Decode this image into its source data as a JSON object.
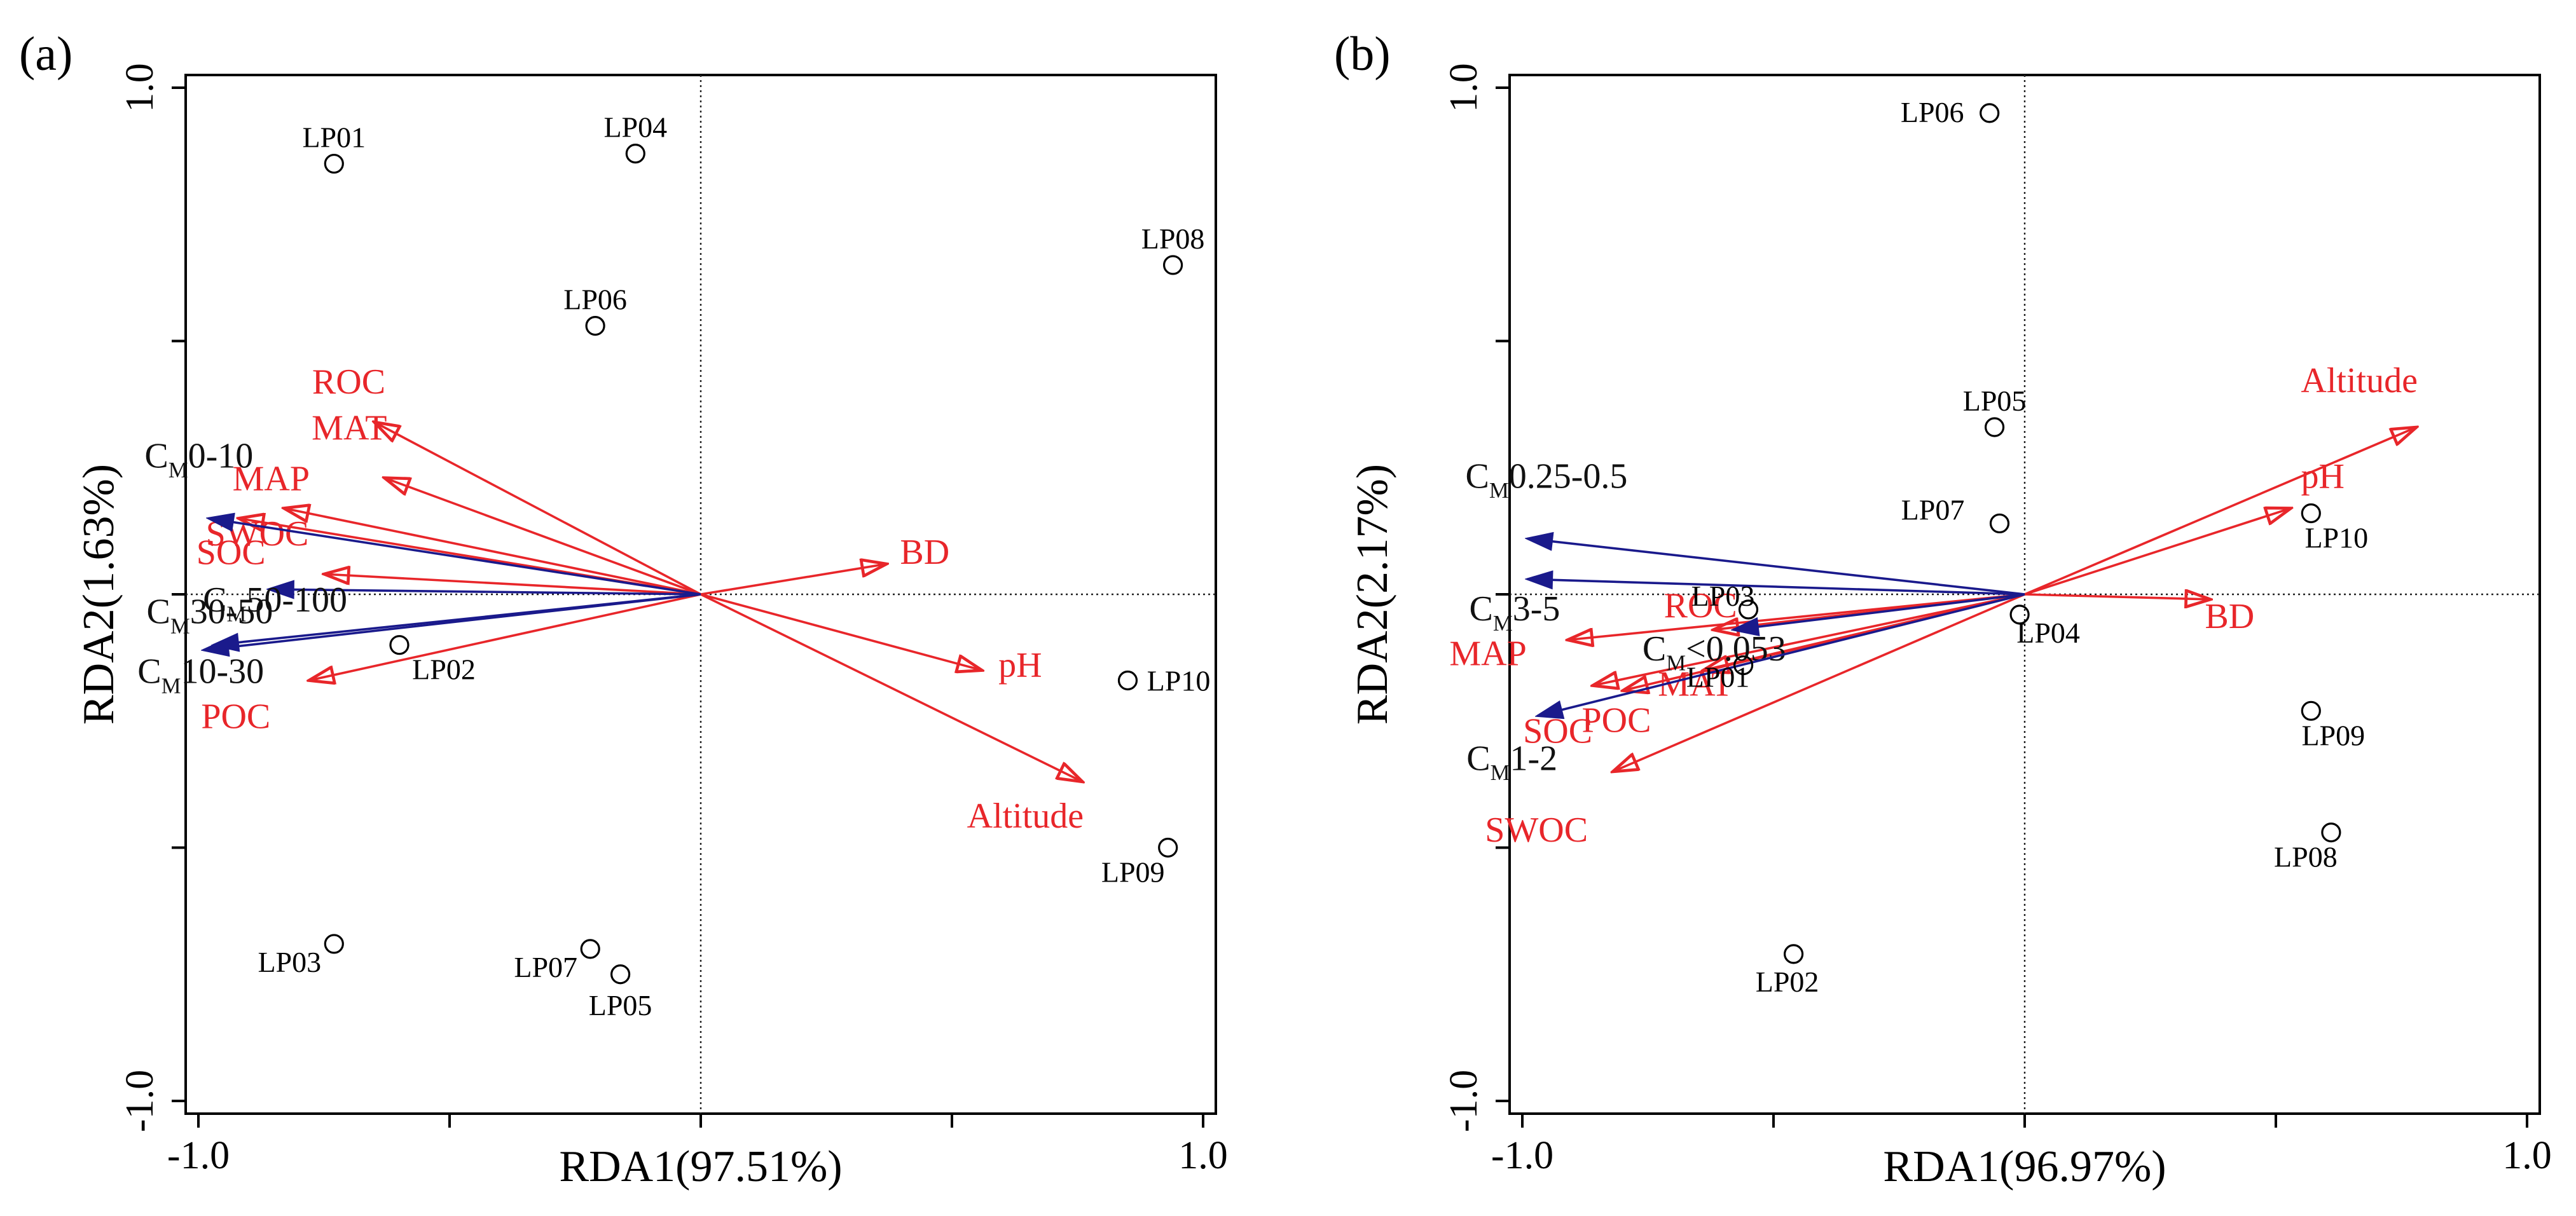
{
  "chart_data": [
    {
      "type": "scatter",
      "panel_label": "(a)",
      "xlabel": "RDA1(97.51%)",
      "ylabel": "RDA2(1.63%)",
      "xlim": [
        -1.0,
        1.0
      ],
      "ylim": [
        -1.0,
        1.0
      ],
      "x_ticks": [
        -1.0,
        1.0
      ],
      "y_ticks": [
        1.0,
        -1.0
      ],
      "x_tick_labels": [
        "-1.0",
        "1.0"
      ],
      "y_tick_labels": [
        "1.0",
        "-1.0"
      ],
      "zero_lines": "dotted",
      "sites": [
        {
          "label": "LP01",
          "x": -0.73,
          "y": 0.85
        },
        {
          "label": "LP04",
          "x": -0.13,
          "y": 0.87
        },
        {
          "label": "LP08",
          "x": 0.94,
          "y": 0.65
        },
        {
          "label": "LP06",
          "x": -0.21,
          "y": 0.53
        },
        {
          "label": "LP02",
          "x": -0.6,
          "y": -0.1
        },
        {
          "label": "LP10",
          "x": 0.85,
          "y": -0.17
        },
        {
          "label": "LP09",
          "x": 0.93,
          "y": -0.5
        },
        {
          "label": "LP03",
          "x": -0.73,
          "y": -0.69
        },
        {
          "label": "LP07",
          "x": -0.22,
          "y": -0.7
        },
        {
          "label": "LP05",
          "x": -0.16,
          "y": -0.75
        }
      ],
      "arrows": [
        {
          "label": "ROC",
          "sub": "",
          "suffix": "",
          "color": "#e8262a",
          "type": "environment",
          "x": -0.65,
          "y": 0.34
        },
        {
          "label": "MAT",
          "sub": "",
          "suffix": "",
          "color": "#e8262a",
          "type": "environment",
          "x": -0.63,
          "y": 0.23
        },
        {
          "label": "MAP",
          "sub": "",
          "suffix": "",
          "color": "#e8262a",
          "type": "environment",
          "x": -0.83,
          "y": 0.17
        },
        {
          "label": "SOC",
          "sub": "",
          "suffix": "",
          "color": "#e8262a",
          "type": "environment",
          "x": -0.92,
          "y": 0.15
        },
        {
          "label": "SWOC",
          "sub": "",
          "suffix": "",
          "color": "#e8262a",
          "type": "environment",
          "x": -0.75,
          "y": 0.04
        },
        {
          "label": "POC",
          "sub": "",
          "suffix": "",
          "color": "#e8262a",
          "type": "environment",
          "x": -0.78,
          "y": -0.17
        },
        {
          "label": "BD",
          "sub": "",
          "suffix": "",
          "color": "#e8262a",
          "type": "environment",
          "x": 0.37,
          "y": 0.06
        },
        {
          "label": "pH",
          "sub": "",
          "suffix": "",
          "color": "#e8262a",
          "type": "environment",
          "x": 0.56,
          "y": -0.15
        },
        {
          "label": "Altitude",
          "sub": "",
          "suffix": "",
          "color": "#e8262a",
          "type": "environment",
          "x": 0.76,
          "y": -0.37
        },
        {
          "label": "C",
          "sub": "M",
          "suffix": "0-10",
          "color": "#1a1a8c",
          "type": "response",
          "x": -0.98,
          "y": 0.15
        },
        {
          "label": "C",
          "sub": "M",
          "suffix": "50-100",
          "color": "#1a1a8c",
          "type": "response",
          "x": -0.86,
          "y": 0.01
        },
        {
          "label": "C",
          "sub": "M",
          "suffix": "30-50",
          "color": "#1a1a8c",
          "type": "response",
          "x": -0.99,
          "y": -0.11
        },
        {
          "label": "C",
          "sub": "M",
          "suffix": "10-30",
          "color": "#1a1a8c",
          "type": "response",
          "x": -0.97,
          "y": -0.1
        }
      ]
    },
    {
      "type": "scatter",
      "panel_label": "(b)",
      "xlabel": "RDA1(96.97%)",
      "ylabel": "RDA2(2.17%)",
      "xlim": [
        -1.0,
        1.0
      ],
      "ylim": [
        -1.0,
        1.0
      ],
      "x_ticks": [
        -1.0,
        1.0
      ],
      "y_ticks": [
        1.0,
        -1.0
      ],
      "x_tick_labels": [
        "-1.0",
        "1.0"
      ],
      "y_tick_labels": [
        "1.0",
        "-1.0"
      ],
      "zero_lines": "dotted",
      "sites": [
        {
          "label": "LP06",
          "x": -0.07,
          "y": 0.95
        },
        {
          "label": "LP05",
          "x": -0.06,
          "y": 0.33
        },
        {
          "label": "LP07",
          "x": -0.05,
          "y": 0.14
        },
        {
          "label": "LP10",
          "x": 0.57,
          "y": 0.16
        },
        {
          "label": "LP03",
          "x": -0.55,
          "y": -0.03
        },
        {
          "label": "LP04",
          "x": -0.01,
          "y": -0.04
        },
        {
          "label": "LP01",
          "x": -0.56,
          "y": -0.14
        },
        {
          "label": "LP09",
          "x": 0.57,
          "y": -0.23
        },
        {
          "label": "LP08",
          "x": 0.61,
          "y": -0.47
        },
        {
          "label": "LP02",
          "x": -0.46,
          "y": -0.71
        }
      ],
      "arrows": [
        {
          "label": "Altitude",
          "sub": "",
          "suffix": "",
          "color": "#e8262a",
          "type": "environment",
          "x": 0.78,
          "y": 0.33
        },
        {
          "label": "pH",
          "sub": "",
          "suffix": "",
          "color": "#e8262a",
          "type": "environment",
          "x": 0.53,
          "y": 0.17
        },
        {
          "label": "BD",
          "sub": "",
          "suffix": "",
          "color": "#e8262a",
          "type": "environment",
          "x": 0.37,
          "y": -0.01
        },
        {
          "label": "ROC",
          "sub": "",
          "suffix": "",
          "color": "#e8262a",
          "type": "environment",
          "x": -0.62,
          "y": -0.07
        },
        {
          "label": "MAP",
          "sub": "",
          "suffix": "",
          "color": "#e8262a",
          "type": "environment",
          "x": -0.91,
          "y": -0.09
        },
        {
          "label": "MAT",
          "sub": "",
          "suffix": "",
          "color": "#e8262a",
          "type": "environment",
          "x": -0.64,
          "y": -0.15
        },
        {
          "label": "POC",
          "sub": "",
          "suffix": "",
          "color": "#e8262a",
          "type": "environment",
          "x": -0.8,
          "y": -0.19
        },
        {
          "label": "SOC",
          "sub": "",
          "suffix": "",
          "color": "#e8262a",
          "type": "environment",
          "x": -0.86,
          "y": -0.18
        },
        {
          "label": "SWOC",
          "sub": "",
          "suffix": "",
          "color": "#e8262a",
          "type": "environment",
          "x": -0.82,
          "y": -0.35
        },
        {
          "label": "C",
          "sub": "M",
          "suffix": "0.25-0.5",
          "color": "#1a1a8c",
          "type": "response",
          "x": -0.99,
          "y": 0.11
        },
        {
          "label": "C",
          "sub": "M",
          "suffix": "3-5",
          "color": "#1a1a8c",
          "type": "response",
          "x": -0.99,
          "y": 0.03
        },
        {
          "label": "C",
          "sub": "M",
          "suffix": "<0.053",
          "color": "#1a1a8c",
          "type": "response",
          "x": -0.58,
          "y": -0.07
        },
        {
          "label": "C",
          "sub": "M",
          "suffix": "1-2",
          "color": "#1a1a8c",
          "type": "response",
          "x": -0.97,
          "y": -0.24
        }
      ]
    }
  ]
}
